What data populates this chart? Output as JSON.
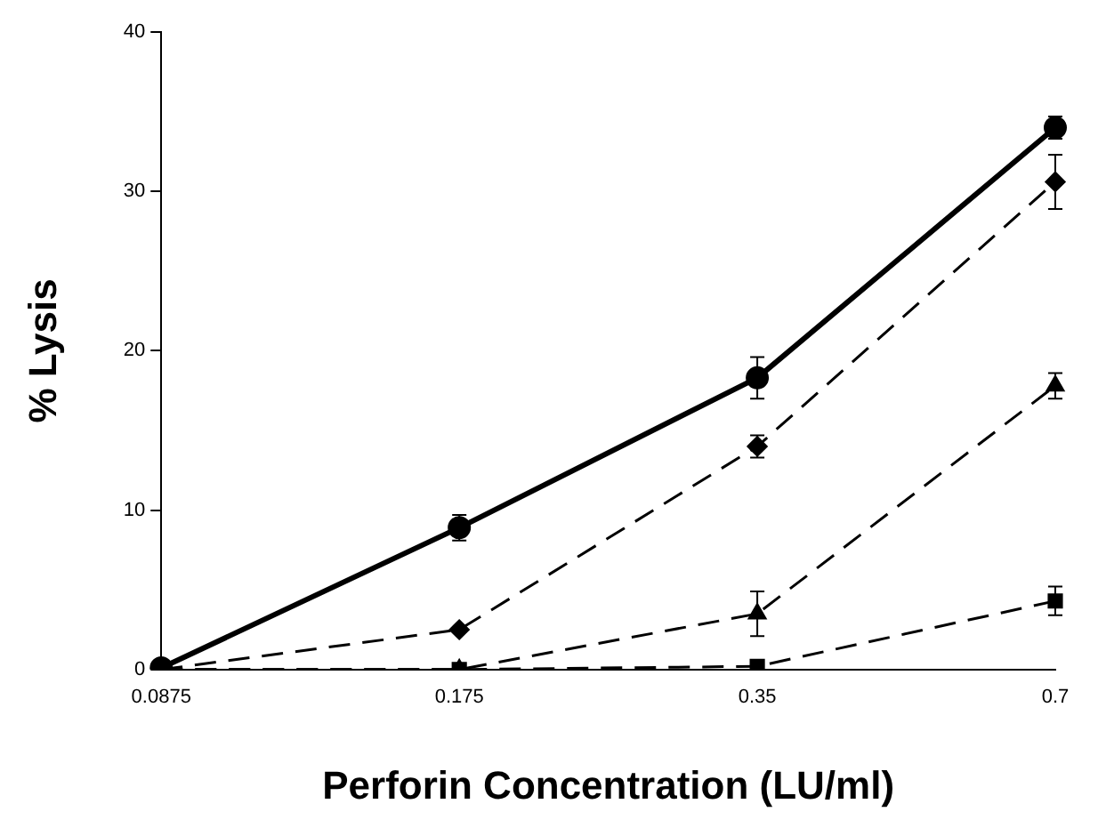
{
  "chart_data": {
    "type": "line",
    "xlabel": "Perforin Concentration (LU/ml)",
    "ylabel": "% Lysis",
    "categories": [
      "0.0875",
      "0.175",
      "0.35",
      "0.7"
    ],
    "ylim": [
      0,
      40
    ],
    "yticks": [
      0,
      10,
      20,
      30,
      40
    ],
    "grid": false,
    "legend": false,
    "series": [
      {
        "color": "#000000",
        "marker": "circle",
        "line_style": "solid",
        "values": [
          0.1,
          8.9,
          18.3,
          34.0
        ],
        "errors": [
          null,
          0.8,
          1.3,
          0.7
        ]
      },
      {
        "color": "#000000",
        "marker": "diamond",
        "line_style": "dashed",
        "values": [
          0,
          2.5,
          14.0,
          30.6
        ],
        "errors": [
          null,
          null,
          0.7,
          1.7
        ]
      },
      {
        "color": "#000000",
        "marker": "square",
        "line_style": "dashed",
        "values": [
          0,
          0,
          0.2,
          4.3
        ],
        "errors": [
          null,
          null,
          null,
          0.9
        ]
      },
      {
        "color": "#000000",
        "marker": "triangle",
        "line_style": "dashed",
        "values": [
          0,
          0,
          3.5,
          17.8
        ],
        "errors": [
          null,
          null,
          1.4,
          0.8
        ]
      }
    ]
  }
}
